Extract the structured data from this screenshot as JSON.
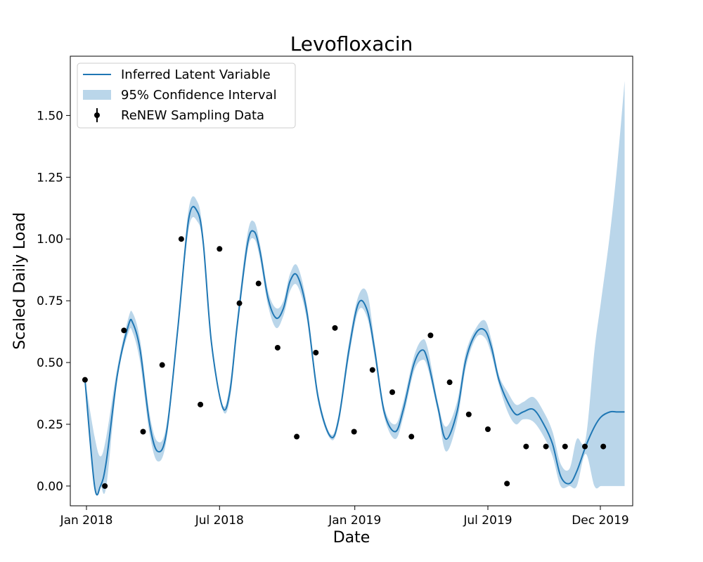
{
  "chart_data": {
    "type": "line",
    "title": "Levofloxacin",
    "xlabel": "Date",
    "ylabel": "Scaled Daily Load",
    "x_ticks": [
      {
        "date": "2018-01-01",
        "label": "Jan 2018"
      },
      {
        "date": "2018-07-01",
        "label": "Jul 2018"
      },
      {
        "date": "2019-01-01",
        "label": "Jan 2019"
      },
      {
        "date": "2019-07-01",
        "label": "Jul 2019"
      },
      {
        "date": "2019-12-01",
        "label": "Dec 2019"
      }
    ],
    "y_ticks": [
      0.0,
      0.25,
      0.5,
      0.75,
      1.0,
      1.25,
      1.5
    ],
    "y_tick_labels": [
      "0.00",
      "0.25",
      "0.50",
      "0.75",
      "1.00",
      "1.25",
      "1.50"
    ],
    "xlim": [
      "2017-12-10",
      "2020-01-14"
    ],
    "ylim": [
      -0.08,
      1.74
    ],
    "grid": false,
    "legend_position": "top-left",
    "colors": {
      "line": "#1f77b4",
      "band": "#bad6ea",
      "points": "#000000"
    },
    "series": [
      {
        "name": "Inferred Latent Variable",
        "kind": "line",
        "x": [
          "2017-12-30",
          "2018-01-12",
          "2018-01-20",
          "2018-01-28",
          "2018-02-12",
          "2018-02-27",
          "2018-03-05",
          "2018-03-15",
          "2018-03-28",
          "2018-04-08",
          "2018-04-20",
          "2018-05-05",
          "2018-05-20",
          "2018-06-01",
          "2018-06-09",
          "2018-06-20",
          "2018-07-05",
          "2018-07-15",
          "2018-07-25",
          "2018-08-08",
          "2018-08-17",
          "2018-08-25",
          "2018-09-05",
          "2018-09-16",
          "2018-09-26",
          "2018-10-05",
          "2018-10-15",
          "2018-10-28",
          "2018-11-12",
          "2018-11-29",
          "2018-12-10",
          "2018-12-24",
          "2019-01-06",
          "2019-01-18",
          "2019-01-28",
          "2019-02-10",
          "2019-02-25",
          "2019-03-08",
          "2019-03-22",
          "2019-04-02",
          "2019-04-10",
          "2019-04-24",
          "2019-05-05",
          "2019-05-20",
          "2019-06-01",
          "2019-06-15",
          "2019-06-27",
          "2019-07-06",
          "2019-07-16",
          "2019-07-28",
          "2019-08-08",
          "2019-08-18",
          "2019-09-01",
          "2019-09-15",
          "2019-09-27",
          "2019-10-08",
          "2019-10-20",
          "2019-10-30",
          "2019-11-11",
          "2019-11-23",
          "2019-12-02",
          "2019-12-14",
          "2019-12-24",
          "2020-01-03"
        ],
        "y": [
          0.43,
          0.0,
          0.0,
          0.1,
          0.45,
          0.65,
          0.66,
          0.55,
          0.25,
          0.14,
          0.22,
          0.63,
          1.08,
          1.11,
          0.98,
          0.58,
          0.32,
          0.38,
          0.65,
          0.98,
          1.03,
          0.95,
          0.76,
          0.68,
          0.72,
          0.83,
          0.85,
          0.7,
          0.36,
          0.2,
          0.27,
          0.55,
          0.74,
          0.71,
          0.55,
          0.3,
          0.22,
          0.31,
          0.49,
          0.55,
          0.51,
          0.32,
          0.19,
          0.3,
          0.51,
          0.62,
          0.63,
          0.56,
          0.43,
          0.34,
          0.29,
          0.3,
          0.31,
          0.25,
          0.17,
          0.04,
          0.01,
          0.06,
          0.16,
          0.24,
          0.28,
          0.3,
          0.3,
          0.3
        ]
      },
      {
        "name": "95% Confidence Interval",
        "kind": "band",
        "x": [
          "2017-12-30",
          "2018-01-12",
          "2018-01-20",
          "2018-01-28",
          "2018-02-12",
          "2018-02-27",
          "2018-03-05",
          "2018-03-15",
          "2018-03-28",
          "2018-04-08",
          "2018-04-20",
          "2018-05-05",
          "2018-05-20",
          "2018-06-01",
          "2018-06-09",
          "2018-06-20",
          "2018-07-05",
          "2018-07-15",
          "2018-07-25",
          "2018-08-08",
          "2018-08-17",
          "2018-08-25",
          "2018-09-05",
          "2018-09-16",
          "2018-09-26",
          "2018-10-05",
          "2018-10-15",
          "2018-10-28",
          "2018-11-12",
          "2018-11-29",
          "2018-12-10",
          "2018-12-24",
          "2019-01-06",
          "2019-01-18",
          "2019-01-28",
          "2019-02-10",
          "2019-02-25",
          "2019-03-08",
          "2019-03-22",
          "2019-04-02",
          "2019-04-10",
          "2019-04-24",
          "2019-05-05",
          "2019-05-20",
          "2019-06-01",
          "2019-06-15",
          "2019-06-27",
          "2019-07-06",
          "2019-07-16",
          "2019-07-28",
          "2019-08-08",
          "2019-08-18",
          "2019-09-01",
          "2019-09-15",
          "2019-09-27",
          "2019-10-08",
          "2019-10-20",
          "2019-10-30",
          "2019-11-11",
          "2019-11-23",
          "2019-12-02",
          "2019-12-14",
          "2019-12-24",
          "2020-01-03"
        ],
        "lower": [
          0.43,
          0.0,
          0.0,
          0.0,
          0.43,
          0.62,
          0.62,
          0.5,
          0.21,
          0.1,
          0.19,
          0.61,
          1.04,
          1.07,
          0.96,
          0.56,
          0.31,
          0.35,
          0.62,
          0.95,
          1.0,
          0.92,
          0.73,
          0.64,
          0.69,
          0.79,
          0.81,
          0.67,
          0.34,
          0.19,
          0.25,
          0.52,
          0.71,
          0.68,
          0.52,
          0.28,
          0.19,
          0.28,
          0.46,
          0.51,
          0.48,
          0.3,
          0.14,
          0.26,
          0.48,
          0.6,
          0.6,
          0.53,
          0.41,
          0.3,
          0.25,
          0.27,
          0.26,
          0.2,
          0.12,
          0.0,
          0.0,
          0.0,
          0.13,
          0.0,
          0.0,
          0.0,
          0.0,
          0.0
        ],
        "upper": [
          0.43,
          0.2,
          0.12,
          0.2,
          0.48,
          0.68,
          0.7,
          0.59,
          0.29,
          0.18,
          0.25,
          0.65,
          1.12,
          1.15,
          1.01,
          0.6,
          0.33,
          0.41,
          0.68,
          1.02,
          1.07,
          0.98,
          0.79,
          0.72,
          0.75,
          0.86,
          0.89,
          0.73,
          0.38,
          0.21,
          0.29,
          0.58,
          0.77,
          0.78,
          0.58,
          0.32,
          0.25,
          0.34,
          0.52,
          0.59,
          0.56,
          0.34,
          0.24,
          0.34,
          0.54,
          0.64,
          0.67,
          0.59,
          0.45,
          0.38,
          0.33,
          0.34,
          0.36,
          0.3,
          0.22,
          0.09,
          0.07,
          0.19,
          0.19,
          0.55,
          0.75,
          1.02,
          1.3,
          1.64
        ]
      },
      {
        "name": "ReNEW Sampling Data",
        "kind": "points",
        "x": [
          "2017-12-30",
          "2018-01-26",
          "2018-02-21",
          "2018-03-19",
          "2018-04-14",
          "2018-05-10",
          "2018-06-05",
          "2018-07-01",
          "2018-07-28",
          "2018-08-23",
          "2018-09-18",
          "2018-10-14",
          "2018-11-09",
          "2018-12-05",
          "2018-12-31",
          "2019-01-25",
          "2019-02-21",
          "2019-03-19",
          "2019-04-14",
          "2019-05-10",
          "2019-06-05",
          "2019-07-01",
          "2019-07-27",
          "2019-08-22",
          "2019-09-18",
          "2019-10-14",
          "2019-11-10",
          "2019-12-05"
        ],
        "y": [
          0.43,
          0.0,
          0.63,
          0.22,
          0.49,
          1.0,
          0.33,
          0.96,
          0.74,
          0.82,
          0.56,
          0.2,
          0.54,
          0.64,
          0.22,
          0.47,
          0.38,
          0.2,
          0.61,
          0.42,
          0.29,
          0.23,
          0.01,
          0.16,
          0.16,
          0.16,
          0.16,
          0.16
        ]
      }
    ],
    "legend": [
      {
        "label": "Inferred Latent Variable",
        "swatch": "line"
      },
      {
        "label": "95% Confidence Interval",
        "swatch": "band"
      },
      {
        "label": "ReNEW Sampling Data",
        "swatch": "errorbar"
      }
    ]
  }
}
